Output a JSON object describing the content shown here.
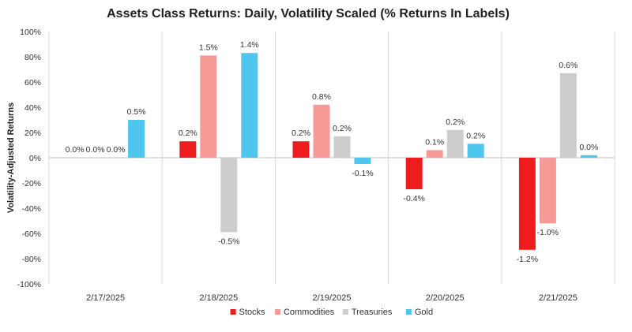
{
  "chart_data": {
    "type": "bar",
    "title": "Assets Class Returns: Daily, Volatility Scaled (% Returns In Labels)",
    "xlabel": "",
    "ylabel": "Volatility-Adjusted Returns",
    "ylim": [
      -100,
      100
    ],
    "yticks": [
      "100%",
      "80%",
      "60%",
      "40%",
      "20%",
      "0%",
      "-20%",
      "-40%",
      "-60%",
      "-80%",
      "-100%"
    ],
    "ytick_values": [
      100,
      80,
      60,
      40,
      20,
      0,
      -20,
      -40,
      -60,
      -80,
      -100
    ],
    "categories": [
      "2/17/2025",
      "2/18/2025",
      "2/19/2025",
      "2/20/2025",
      "2/21/2025"
    ],
    "grid": false,
    "legend_position": "bottom",
    "series": [
      {
        "name": "Stocks",
        "color": "#ee1c1c",
        "values": [
          0,
          13,
          13,
          -25,
          -73
        ],
        "labels": [
          "0.0%",
          "0.2%",
          "0.2%",
          "-0.4%",
          "-1.2%"
        ]
      },
      {
        "name": "Commodities",
        "color": "#f79a97",
        "values": [
          0,
          81,
          42,
          6,
          -52
        ],
        "labels": [
          "0.0%",
          "1.5%",
          "0.8%",
          "0.1%",
          "-1.0%"
        ]
      },
      {
        "name": "Treasuries",
        "color": "#cdcdcd",
        "values": [
          0,
          -59,
          17,
          22,
          67
        ],
        "labels": [
          "0.0%",
          "-0.5%",
          "0.2%",
          "0.2%",
          "0.6%"
        ]
      },
      {
        "name": "Gold",
        "color": "#4fc6ee",
        "values": [
          30,
          83,
          -5,
          11,
          2
        ],
        "labels": [
          "0.5%",
          "1.4%",
          "-0.1%",
          "0.2%",
          "0.0%"
        ]
      }
    ]
  }
}
